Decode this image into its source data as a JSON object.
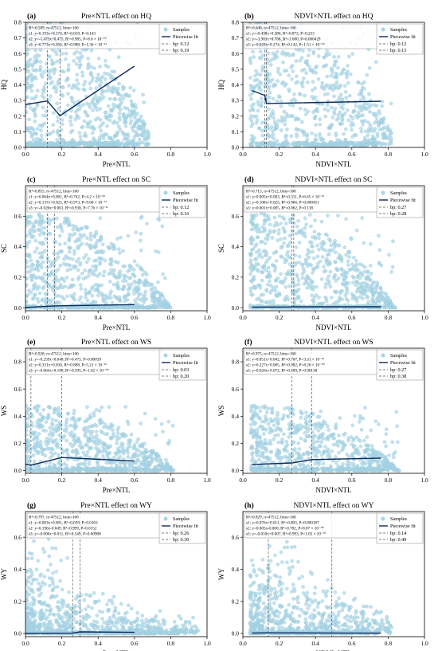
{
  "colors": {
    "sample": "#a9d5e6",
    "fit": "#0b2a5b",
    "breakpoint": "#555555"
  },
  "legend_labels": {
    "samples": "Samples",
    "fit": "Piecewise fit"
  },
  "chart_data": [
    {
      "letter": "(a)",
      "type": "scatter",
      "title": "Pre×NTL effect on HQ",
      "xlabel": "Pre×NTL",
      "ylabel": "HQ",
      "xlim": [
        0,
        1
      ],
      "ylim": [
        0,
        0.8
      ],
      "xticks": [
        "0.0",
        "0.2",
        "0.4",
        "0.6",
        "0.8",
        "1.0"
      ],
      "yticks": [
        "0.0",
        "0.1",
        "0.2",
        "0.3",
        "0.4",
        "0.5",
        "0.6",
        "0.7",
        "0.8"
      ],
      "stats": [
        "R²=0.589, n=47512, bins=160",
        "s1: y=0.193x+0.274, R²=0.019, P=0.143",
        "s2: y=-1.473x+0.475, R²=0.985, P=8.6 × 10⁻¹⁰",
        "s3: y=0.773x+0.056, R²=0.988, P=1.36 × 10⁻¹¹"
      ],
      "breakpoints": [
        0.12,
        0.19
      ],
      "bp_labels": [
        "bp: 0.12",
        "bp: 0.19"
      ],
      "fit": [
        [
          0.0,
          0.274
        ],
        [
          0.12,
          0.297
        ],
        [
          0.19,
          0.203
        ],
        [
          0.6,
          0.52
        ]
      ],
      "scatter_profile": {
        "xmin": 0.0,
        "xmax": 0.68,
        "base": 0.08,
        "top": 0.8
      }
    },
    {
      "letter": "(b)",
      "type": "scatter",
      "title": "NDVI×NTL effect on HQ",
      "xlabel": "NDVI×NTL",
      "ylabel": "HQ",
      "xlim": [
        0,
        1
      ],
      "ylim": [
        0,
        0.8
      ],
      "xticks": [
        "0.0",
        "0.2",
        "0.4",
        "0.6",
        "0.8",
        "1.0"
      ],
      "yticks": [
        "0.0",
        "0.1",
        "0.2",
        "0.3",
        "0.4",
        "0.5",
        "0.6",
        "0.7",
        "0.8"
      ],
      "stats": [
        "R²=0.640, n=47512, bins=160",
        "s1: y=-0.438x+0.386, R²=0.872, P=0.233",
        "s2: y=-3.903x+0.788, R²=1.000, P=0.000429",
        "s3: y=0.028x+0.274, R²=0.142, P=1.51 × 10⁻⁰⁶"
      ],
      "breakpoints": [
        0.12,
        0.13
      ],
      "bp_labels": [
        "bp: 0.12",
        "bp: 0.13"
      ],
      "fit": [
        [
          0.05,
          0.364
        ],
        [
          0.12,
          0.333
        ],
        [
          0.13,
          0.281
        ],
        [
          0.76,
          0.295
        ]
      ],
      "scatter_profile": {
        "xmin": 0.04,
        "xmax": 0.82,
        "base": 0.08,
        "top": 0.8
      }
    },
    {
      "letter": "(c)",
      "type": "scatter",
      "title": "Pre×NTL effect on SC",
      "xlabel": "Pre×NTL",
      "ylabel": "SC",
      "xlim": [
        0,
        1
      ],
      "ylim": [
        -0.02,
        0.8
      ],
      "xticks": [
        "0.0",
        "0.2",
        "0.4",
        "0.6",
        "0.8",
        "1.0"
      ],
      "yticks": [
        "0.0",
        "0.2",
        "0.4",
        "0.6"
      ],
      "stats": [
        "R²=0.855, n=47512, bins=160",
        "s1: y=0.064x+0.001, R²=0.762, P=4.2 × 10⁻⁰⁶",
        "s2: y=0.137x+0.025, R²=0.973, P=9.68 × 10⁻¹¹",
        "s3: y=-0.026x+0.001, R²=0.938, P=7.76 × 10⁻¹¹"
      ],
      "breakpoints": [
        0.12,
        0.16
      ],
      "bp_labels": [
        "bp: 0.12",
        "bp: 0.16"
      ],
      "fit": [
        [
          0.0,
          0.002
        ],
        [
          0.12,
          0.009
        ],
        [
          0.16,
          0.012
        ],
        [
          0.6,
          0.02
        ]
      ],
      "scatter_profile": {
        "xmin": 0.0,
        "xmax": 0.8,
        "base": 0.0,
        "top": 0.62
      }
    },
    {
      "letter": "(d)",
      "type": "scatter",
      "title": "NDVI×NTL effect on SC",
      "xlabel": "NDVI×NTL",
      "ylabel": "SC",
      "xlim": [
        0,
        1
      ],
      "ylim": [
        -0.02,
        0.8
      ],
      "xticks": [
        "0.0",
        "0.2",
        "0.4",
        "0.6",
        "0.8",
        "1.0"
      ],
      "yticks": [
        "0.0",
        "0.2",
        "0.4",
        "0.6"
      ],
      "stats": [
        "R²=0.713, n=47512, bins=160",
        "s1: y=0.005x+0.003, R²=0.311, P=6.65 × 10⁻¹²",
        "s2: y=0.108x+0.025, R²=0.966, P=0.000451",
        "s3: y=0.001x+0.005, R²=0.062, P=0.138"
      ],
      "breakpoints": [
        0.27,
        0.28
      ],
      "bp_labels": [
        "bp: 0.27",
        "bp: 0.28"
      ],
      "fit": [
        [
          0.05,
          0.004
        ],
        [
          0.27,
          0.005
        ],
        [
          0.28,
          0.006
        ],
        [
          0.76,
          0.006
        ]
      ],
      "scatter_profile": {
        "xmin": 0.04,
        "xmax": 0.84,
        "base": 0.0,
        "top": 0.62
      }
    },
    {
      "letter": "(e)",
      "type": "scatter",
      "title": "Pre×NTL effect on WS",
      "xlabel": "Pre×NTL",
      "ylabel": "WS",
      "xlim": [
        0,
        1
      ],
      "ylim": [
        -0.02,
        0.9
      ],
      "xticks": [
        "0.0",
        "0.2",
        "0.4",
        "0.6",
        "0.8",
        "1.0"
      ],
      "yticks": [
        "0.0",
        "0.2",
        "0.4",
        "0.6",
        "0.8"
      ],
      "stats": [
        "R²=0.928, n=47512, bins=160",
        "s1: y=-0.259x+0.048, R²=0.475, P=0.00039",
        "s2: y=0.331x+0.030, R²=0.888, P=5.21 × 10⁻¹⁶",
        "s3: y=-0.064x+0.108, R²=0.595, P=1.02 × 10⁻⁰⁹"
      ],
      "breakpoints": [
        0.03,
        0.2
      ],
      "bp_labels": [
        "bp: 0.03",
        "bp: 0.20"
      ],
      "fit": [
        [
          0.0,
          0.048
        ],
        [
          0.03,
          0.04
        ],
        [
          0.2,
          0.096
        ],
        [
          0.6,
          0.07
        ]
      ],
      "scatter_profile": {
        "xmin": 0.0,
        "xmax": 0.82,
        "base": 0.0,
        "top": 0.48
      }
    },
    {
      "letter": "(f)",
      "type": "scatter",
      "title": "NDVI×NTL effect on WS",
      "xlabel": "NDVI×NTL",
      "ylabel": "WS",
      "xlim": [
        0,
        1
      ],
      "ylim": [
        -0.02,
        0.9
      ],
      "xticks": [
        "0.0",
        "0.2",
        "0.4",
        "0.6",
        "0.8",
        "1.0"
      ],
      "yticks": [
        "0.0",
        "0.2",
        "0.4",
        "0.6",
        "0.8"
      ],
      "stats": [
        "R²=0.975, n=47512, bins=160",
        "s1: y=0.051x+0.042, R²=0.707, P=3.31 × 10⁻²²",
        "s2: y=0.227x+0.005, R²=0.982, P=8.26 × 10⁻⁰⁵",
        "s3: y=0.026x+0.072, R²=0.409, P=0.00138"
      ],
      "breakpoints": [
        0.27,
        0.38
      ],
      "bp_labels": [
        "bp: 0.27",
        "bp: 0.38"
      ],
      "fit": [
        [
          0.05,
          0.045
        ],
        [
          0.27,
          0.056
        ],
        [
          0.38,
          0.081
        ],
        [
          0.76,
          0.092
        ]
      ],
      "scatter_profile": {
        "xmin": 0.04,
        "xmax": 0.86,
        "base": 0.0,
        "top": 0.48
      }
    },
    {
      "letter": "(g)",
      "type": "scatter",
      "title": "Pre×NTL effect on WY",
      "xlabel": "Pre×NTL",
      "ylabel": "WY",
      "xlim": [
        0,
        1
      ],
      "ylim": [
        -0.02,
        0.76
      ],
      "xticks": [
        "0.0",
        "0.2",
        "0.4",
        "0.6",
        "0.8",
        "1.0"
      ],
      "yticks": [
        "0.0",
        "0.2",
        "0.4",
        "0.6"
      ],
      "stats": [
        "R²=0.797, n=47512, bins=160",
        "s1: y=0.003x+0.001, R²=0.039, P=0.0163",
        "s2: y=0.196x-0.049, R²=0.999, P=0.0152",
        "s3: y=-0.006x+0.011, R²=0.549, P=0.00908"
      ],
      "breakpoints": [
        0.26,
        0.3
      ],
      "bp_labels": [
        "bp: 0.26",
        "bp: 0.30"
      ],
      "fit": [
        [
          0.0,
          0.001
        ],
        [
          0.26,
          0.002
        ],
        [
          0.3,
          0.01
        ],
        [
          0.6,
          0.007
        ]
      ],
      "scatter_profile": {
        "xmin": 0.0,
        "xmax": 0.96,
        "base": 0.0,
        "top": 0.72,
        "peak": 0.1
      }
    },
    {
      "letter": "(h)",
      "type": "scatter",
      "title": "NDVI×NTL effect on WY",
      "xlabel": "NDVI×NTL",
      "ylabel": "WY",
      "xlim": [
        0,
        1
      ],
      "ylim": [
        -0.02,
        0.76
      ],
      "xticks": [
        "0.0",
        "0.2",
        "0.4",
        "0.6",
        "0.8",
        "1.0"
      ],
      "yticks": [
        "0.0",
        "0.2",
        "0.4",
        "0.6"
      ],
      "stats": [
        "R²=0.829, n=47512, bins=160",
        "s1: y=0.076x+0.011, R²=0.803, P=0.000187",
        "s2: y=0.005x-0.000, R²=0.782, P=8.87 × 10⁻⁰⁸",
        "s3: y=-0.010x+0.007, R²=0.993, P=1.03 × 10⁻⁰⁷"
      ],
      "breakpoints": [
        0.14,
        0.49
      ],
      "bp_labels": [
        "bp: 0.14",
        "bp: 0.49"
      ],
      "fit": [
        [
          0.05,
          0.003
        ],
        [
          0.14,
          0.004
        ],
        [
          0.49,
          0.003
        ],
        [
          0.76,
          0.002
        ]
      ],
      "scatter_profile": {
        "xmin": 0.04,
        "xmax": 0.82,
        "base": 0.0,
        "top": 0.72,
        "peak": 0.22
      }
    }
  ]
}
